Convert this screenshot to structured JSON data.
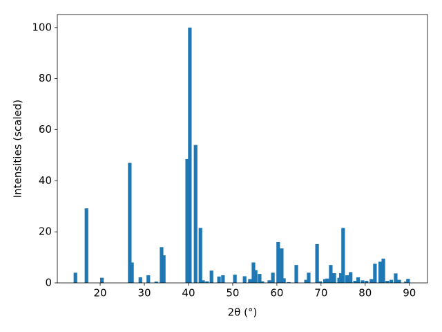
{
  "chart_data": {
    "type": "bar",
    "xlabel": "2θ (°)",
    "ylabel": "Intensities (scaled)",
    "color": "#1f77b4",
    "x": [
      14.4,
      16.9,
      20.4,
      26.7,
      27.2,
      29.1,
      30.9,
      32.7,
      33.9,
      34.4,
      39.7,
      40.3,
      41.6,
      42.7,
      43.3,
      44.2,
      45.2,
      46.9,
      47.8,
      50.5,
      52.7,
      53.9,
      54.7,
      55.2,
      56.1,
      56.7,
      58.3,
      59.1,
      60.3,
      61.1,
      61.6,
      62.7,
      64.4,
      66.6,
      67.2,
      69.1,
      69.8,
      70.9,
      71.4,
      72.2,
      73.0,
      74.1,
      74.5,
      75.0,
      75.9,
      76.7,
      77.7,
      78.4,
      79.4,
      80.3,
      81.4,
      82.2,
      83.4,
      84.1,
      85.0,
      85.9,
      86.9,
      87.7,
      89.2,
      89.7
    ],
    "values": [
      4,
      29.2,
      2,
      47,
      8,
      2.2,
      3,
      0.5,
      14,
      10.8,
      48.5,
      100,
      54,
      21.5,
      1,
      0.6,
      4.8,
      2.5,
      3,
      3.2,
      2.6,
      1.5,
      8,
      5,
      3.5,
      0.6,
      1,
      4,
      16,
      13.5,
      1.8,
      0.3,
      7,
      1.2,
      4,
      15.2,
      0.6,
      1.5,
      1.7,
      7,
      3.8,
      2,
      3.8,
      21.5,
      3,
      4.2,
      0.8,
      2.2,
      1,
      0.8,
      1.5,
      7.5,
      8.3,
      9.5,
      0.8,
      1.2,
      3.7,
      1.2,
      0.5,
      1.6
    ],
    "xlim": [
      10.3,
      94.1
    ],
    "ylim": [
      0,
      105.1
    ],
    "xticks": [
      20,
      30,
      40,
      50,
      60,
      70,
      80,
      90
    ],
    "yticks": [
      0,
      20,
      40,
      60,
      80,
      100
    ]
  }
}
